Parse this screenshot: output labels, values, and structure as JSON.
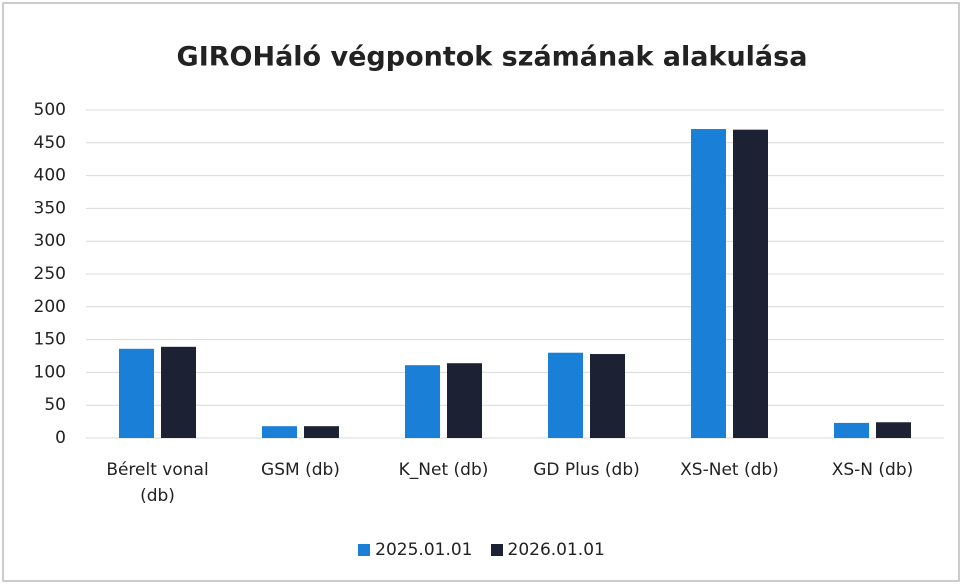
{
  "chart_data": {
    "type": "bar",
    "title": "GIROHáló végpontok számának alakulása",
    "categories": [
      "Bérelt vonal (db)",
      "GSM (db)",
      "K_Net (db)",
      "GD Plus (db)",
      "XS-Net (db)",
      "XS-N (db)"
    ],
    "series": [
      {
        "name": "2025.01.01",
        "color": "#1a7fd6",
        "values": [
          136,
          18,
          111,
          130,
          471,
          23
        ]
      },
      {
        "name": "2026.01.01",
        "color": "#1c2233",
        "values": [
          139,
          18,
          114,
          128,
          470,
          24
        ]
      }
    ],
    "ylim": [
      0,
      500
    ],
    "yticks": [
      0,
      50,
      100,
      150,
      200,
      250,
      300,
      350,
      400,
      450,
      500
    ],
    "grid": true,
    "legend": "bottom"
  }
}
